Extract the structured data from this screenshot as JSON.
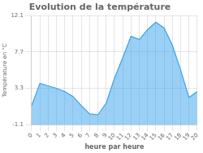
{
  "chart_data": {
    "type": "area",
    "title": "Evolution de la température",
    "xlabel": "heure par heure",
    "ylabel": "Température en °C",
    "x": [
      0,
      1,
      2,
      3,
      4,
      5,
      6,
      7,
      8,
      9,
      10,
      11,
      12,
      13,
      14,
      15,
      16,
      17,
      18,
      19,
      20
    ],
    "values": [
      1.2,
      3.9,
      3.6,
      3.3,
      2.9,
      2.3,
      1.2,
      0.2,
      0.1,
      1.5,
      4.5,
      7.0,
      9.6,
      9.2,
      10.4,
      11.3,
      10.6,
      8.5,
      5.5,
      2.2,
      2.9
    ],
    "xlim": [
      0,
      20
    ],
    "xticks": [
      0,
      1,
      2,
      3,
      4,
      5,
      6,
      7,
      8,
      9,
      10,
      11,
      12,
      13,
      14,
      15,
      16,
      17,
      18,
      19,
      20
    ],
    "ylim": [
      -1.1,
      12.1
    ],
    "yticks": [
      -1.1,
      3.3,
      7.7,
      12.1
    ],
    "grid": true
  }
}
